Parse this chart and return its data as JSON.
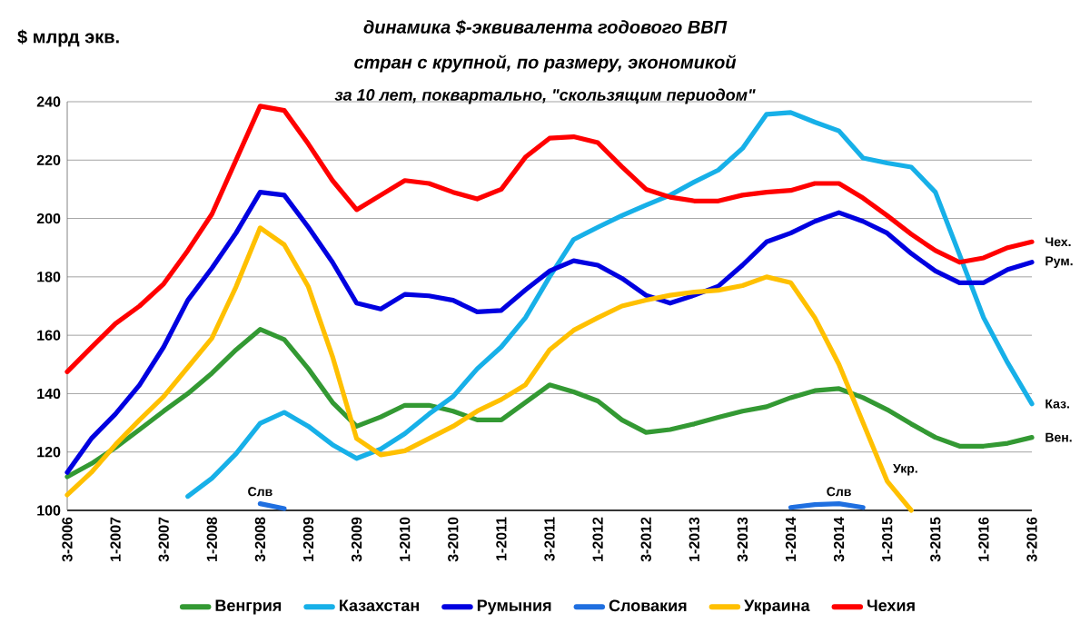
{
  "chart_data": {
    "type": "line",
    "title": "динамика $-эквивалента годового ВВП",
    "subtitle": "стран с крупной, по размеру, экономикой",
    "ylabel": "$ млрд экв.",
    "categories": [
      "3-2006",
      null,
      "1-2007",
      null,
      "3-2007",
      null,
      "1-2008",
      null,
      "3-2008",
      null,
      "1-2009",
      null,
      "3-2009",
      null,
      "1-2010",
      null,
      "3-2010",
      null,
      "1-2011",
      null,
      "3-2011",
      null,
      "1-2012",
      null,
      "3-2012",
      null,
      "1-2013",
      null,
      "3-2013",
      null,
      "1-2014",
      null,
      "3-2014",
      null,
      "1-2015",
      null,
      "3-2015",
      null,
      "1-2016",
      null,
      "3-2016"
    ],
    "series": [
      {
        "name": "Венгрия",
        "color": "#339933",
        "values": [
          111.5,
          116,
          121.5,
          127.7,
          134,
          140,
          147,
          155,
          162,
          158.5,
          148.5,
          137,
          128.8,
          132,
          136,
          136,
          134,
          131,
          131,
          137,
          143,
          140.6,
          137.5,
          131,
          126.7,
          127.7,
          129.6,
          131.9,
          134,
          135.5,
          138.6,
          141,
          141.7,
          138.6,
          134.5,
          129.6,
          125,
          122,
          122,
          123,
          125
        ]
      },
      {
        "name": "Казахстан",
        "color": "#17b0e8",
        "values": [
          null,
          null,
          null,
          null,
          null,
          104.8,
          111,
          119.4,
          129.8,
          133.6,
          128.8,
          122.5,
          117.8,
          121,
          126.3,
          133,
          139,
          148.5,
          156,
          166,
          180,
          192.8,
          197,
          201,
          204.6,
          208,
          212.5,
          216.6,
          224,
          235.7,
          236.3,
          233,
          230,
          220.7,
          219,
          217.6,
          209,
          187.6,
          166,
          150.5,
          136.5
        ]
      },
      {
        "name": "Румыния",
        "color": "#0000e0",
        "values": [
          113,
          124.6,
          133,
          143,
          156,
          172,
          183,
          195,
          209,
          208,
          197,
          185,
          171,
          169,
          174,
          173.5,
          172,
          168,
          168.5,
          175.5,
          182,
          185.5,
          184,
          179.5,
          173.7,
          171,
          173.7,
          176.8,
          184,
          192,
          195,
          199,
          202,
          199,
          195,
          188,
          182,
          178,
          178,
          182.5,
          185
        ]
      },
      {
        "name": "Словакия",
        "color": "#1f6fe0",
        "values": [
          null,
          null,
          null,
          null,
          null,
          null,
          null,
          null,
          102.3,
          100.6,
          null,
          null,
          null,
          null,
          null,
          null,
          null,
          null,
          null,
          null,
          null,
          null,
          null,
          null,
          null,
          null,
          null,
          null,
          null,
          null,
          101,
          102,
          102.3,
          101,
          null,
          null,
          null,
          null,
          null,
          null,
          null
        ]
      },
      {
        "name": "Украина",
        "color": "#ffc000",
        "values": [
          105.3,
          113,
          122.5,
          131,
          139,
          149,
          159,
          176.6,
          196.8,
          191,
          176.6,
          152.7,
          124.6,
          119,
          120.4,
          124.6,
          128.8,
          134,
          138,
          143,
          155,
          161.7,
          166,
          170,
          172,
          173.7,
          174.8,
          175.4,
          177,
          180,
          178,
          166,
          150,
          130,
          110,
          100,
          null,
          null,
          null,
          null,
          null
        ]
      },
      {
        "name": "Чехия",
        "color": "#ff0000",
        "values": [
          147.5,
          155.8,
          164,
          170,
          177.6,
          189,
          201.5,
          220,
          238.5,
          237,
          225.5,
          213,
          203,
          208,
          213,
          212,
          209,
          206.7,
          210,
          221,
          227.5,
          228,
          226,
          217.7,
          210,
          207.3,
          206,
          206,
          208,
          209,
          209.6,
          212,
          212,
          207,
          201,
          194.6,
          189,
          185,
          186.5,
          190,
          192
        ]
      }
    ],
    "ylim": [
      100,
      240
    ],
    "yticks": [
      100,
      120,
      140,
      160,
      180,
      200,
      220,
      240
    ],
    "grid": "y",
    "legend": "bottom",
    "annotations": [
      "за 10 лет, поквартально, \"скользящим периодом\"",
      {
        "text": "Чех.",
        "x": "3-2016",
        "y": 192
      },
      {
        "text": "Рум.",
        "x": "3-2016",
        "y": 185
      },
      {
        "text": "Каз.",
        "x": "3-2016",
        "y": 136.5
      },
      {
        "text": "Вен.",
        "x": "3-2016",
        "y": 125
      },
      {
        "text": "Укр.",
        "x": "1-2015",
        "y": 110
      },
      {
        "text": "Слв",
        "x": "3-2008",
        "y": 102.3
      },
      {
        "text": "Слв",
        "x": "3-2014",
        "y": 102.3
      }
    ]
  }
}
